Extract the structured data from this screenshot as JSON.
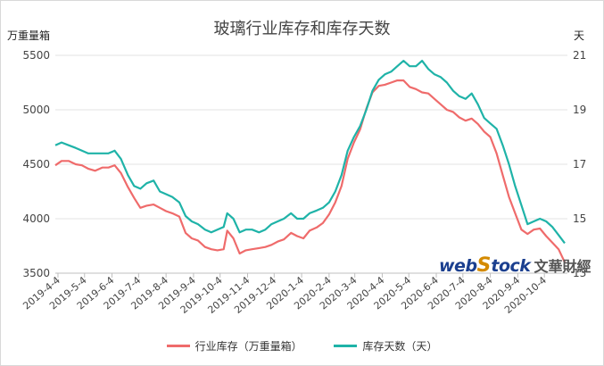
{
  "chart_data": {
    "type": "line",
    "title": "玻璃行业库存和库存天数",
    "ylabel_left": "万重量箱",
    "ylabel_right": "天",
    "y_left_ticks": [
      "3500",
      "4000",
      "4500",
      "5000",
      "5500"
    ],
    "y_right_ticks": [
      "13",
      "15",
      "17",
      "19",
      "21"
    ],
    "y_left_range": [
      3500,
      5500
    ],
    "y_right_range": [
      13,
      21
    ],
    "x_range": [
      "2019-4-1",
      "2020-10-30"
    ],
    "x_ticks": [
      "2019-4-4",
      "2019-5-4",
      "2019-6-4",
      "2019-7-4",
      "2019-8-4",
      "2019-9-4",
      "2019-10-4",
      "2019-11-4",
      "2019-12-4",
      "2020-1-4",
      "2020-2-4",
      "2020-3-4",
      "2020-4-4",
      "2020-5-4",
      "2020-6-4",
      "2020-7-4",
      "2020-8-4",
      "2020-9-4",
      "2020-10-4"
    ],
    "grid": "horizontal",
    "legend_position": "bottom",
    "series": [
      {
        "name": "行业库存（万重量箱）",
        "axis": "left",
        "color": "#ef6b6b",
        "points": [
          [
            "2019-4-1",
            4490
          ],
          [
            "2019-4-8",
            4530
          ],
          [
            "2019-4-16",
            4530
          ],
          [
            "2019-4-24",
            4500
          ],
          [
            "2019-5-1",
            4490
          ],
          [
            "2019-5-8",
            4460
          ],
          [
            "2019-5-16",
            4440
          ],
          [
            "2019-5-24",
            4470
          ],
          [
            "2019-5-31",
            4470
          ],
          [
            "2019-6-7",
            4490
          ],
          [
            "2019-6-14",
            4420
          ],
          [
            "2019-6-22",
            4290
          ],
          [
            "2019-6-29",
            4190
          ],
          [
            "2019-7-6",
            4100
          ],
          [
            "2019-7-13",
            4120
          ],
          [
            "2019-7-21",
            4130
          ],
          [
            "2019-7-28",
            4100
          ],
          [
            "2019-8-4",
            4070
          ],
          [
            "2019-8-11",
            4050
          ],
          [
            "2019-8-19",
            4020
          ],
          [
            "2019-8-26",
            3870
          ],
          [
            "2019-9-2",
            3820
          ],
          [
            "2019-9-9",
            3800
          ],
          [
            "2019-9-17",
            3740
          ],
          [
            "2019-9-24",
            3720
          ],
          [
            "2019-10-1",
            3710
          ],
          [
            "2019-10-8",
            3720
          ],
          [
            "2019-10-12",
            3890
          ],
          [
            "2019-10-19",
            3820
          ],
          [
            "2019-10-26",
            3680
          ],
          [
            "2019-11-2",
            3710
          ],
          [
            "2019-11-9",
            3720
          ],
          [
            "2019-11-17",
            3730
          ],
          [
            "2019-11-24",
            3740
          ],
          [
            "2019-12-1",
            3760
          ],
          [
            "2019-12-8",
            3790
          ],
          [
            "2019-12-15",
            3810
          ],
          [
            "2019-12-23",
            3870
          ],
          [
            "2019-12-30",
            3840
          ],
          [
            "2020-1-6",
            3820
          ],
          [
            "2020-1-13",
            3890
          ],
          [
            "2020-1-21",
            3920
          ],
          [
            "2020-1-28",
            3960
          ],
          [
            "2020-2-4",
            4040
          ],
          [
            "2020-2-11",
            4150
          ],
          [
            "2020-2-18",
            4300
          ],
          [
            "2020-2-25",
            4550
          ],
          [
            "2020-3-3",
            4700
          ],
          [
            "2020-3-10",
            4820
          ],
          [
            "2020-3-17",
            5010
          ],
          [
            "2020-3-24",
            5160
          ],
          [
            "2020-3-31",
            5220
          ],
          [
            "2020-4-7",
            5230
          ],
          [
            "2020-4-14",
            5250
          ],
          [
            "2020-4-21",
            5270
          ],
          [
            "2020-4-28",
            5270
          ],
          [
            "2020-5-5",
            5210
          ],
          [
            "2020-5-12",
            5190
          ],
          [
            "2020-5-19",
            5160
          ],
          [
            "2020-5-26",
            5150
          ],
          [
            "2020-6-2",
            5100
          ],
          [
            "2020-6-9",
            5050
          ],
          [
            "2020-6-16",
            5000
          ],
          [
            "2020-6-23",
            4980
          ],
          [
            "2020-6-30",
            4930
          ],
          [
            "2020-7-7",
            4900
          ],
          [
            "2020-7-14",
            4920
          ],
          [
            "2020-7-21",
            4870
          ],
          [
            "2020-7-28",
            4800
          ],
          [
            "2020-8-4",
            4750
          ],
          [
            "2020-8-11",
            4600
          ],
          [
            "2020-8-18",
            4400
          ],
          [
            "2020-8-25",
            4200
          ],
          [
            "2020-9-1",
            4050
          ],
          [
            "2020-9-8",
            3900
          ],
          [
            "2020-9-15",
            3860
          ],
          [
            "2020-9-22",
            3900
          ],
          [
            "2020-9-29",
            3910
          ],
          [
            "2020-10-6",
            3840
          ],
          [
            "2020-10-13",
            3780
          ],
          [
            "2020-10-20",
            3720
          ],
          [
            "2020-10-27",
            3600
          ]
        ]
      },
      {
        "name": "库存天数（天）",
        "axis": "right",
        "color": "#1fb3a8",
        "points": [
          [
            "2019-4-1",
            17.7
          ],
          [
            "2019-4-8",
            17.8
          ],
          [
            "2019-4-16",
            17.7
          ],
          [
            "2019-4-24",
            17.6
          ],
          [
            "2019-5-1",
            17.5
          ],
          [
            "2019-5-8",
            17.4
          ],
          [
            "2019-5-16",
            17.4
          ],
          [
            "2019-5-24",
            17.4
          ],
          [
            "2019-5-31",
            17.4
          ],
          [
            "2019-6-7",
            17.5
          ],
          [
            "2019-6-14",
            17.2
          ],
          [
            "2019-6-22",
            16.6
          ],
          [
            "2019-6-29",
            16.2
          ],
          [
            "2019-7-6",
            16.1
          ],
          [
            "2019-7-13",
            16.3
          ],
          [
            "2019-7-21",
            16.4
          ],
          [
            "2019-7-28",
            16.0
          ],
          [
            "2019-8-4",
            15.9
          ],
          [
            "2019-8-11",
            15.8
          ],
          [
            "2019-8-19",
            15.6
          ],
          [
            "2019-8-26",
            15.1
          ],
          [
            "2019-9-2",
            14.9
          ],
          [
            "2019-9-9",
            14.8
          ],
          [
            "2019-9-17",
            14.6
          ],
          [
            "2019-9-24",
            14.5
          ],
          [
            "2019-10-1",
            14.6
          ],
          [
            "2019-10-8",
            14.7
          ],
          [
            "2019-10-12",
            15.2
          ],
          [
            "2019-10-19",
            15.0
          ],
          [
            "2019-10-26",
            14.5
          ],
          [
            "2019-11-2",
            14.6
          ],
          [
            "2019-11-9",
            14.6
          ],
          [
            "2019-11-17",
            14.5
          ],
          [
            "2019-11-24",
            14.6
          ],
          [
            "2019-12-1",
            14.8
          ],
          [
            "2019-12-8",
            14.9
          ],
          [
            "2019-12-15",
            15.0
          ],
          [
            "2019-12-23",
            15.2
          ],
          [
            "2019-12-30",
            15.0
          ],
          [
            "2020-1-6",
            15.0
          ],
          [
            "2020-1-13",
            15.2
          ],
          [
            "2020-1-21",
            15.3
          ],
          [
            "2020-1-28",
            15.4
          ],
          [
            "2020-2-4",
            15.6
          ],
          [
            "2020-2-11",
            16.0
          ],
          [
            "2020-2-18",
            16.6
          ],
          [
            "2020-2-25",
            17.5
          ],
          [
            "2020-3-3",
            18.0
          ],
          [
            "2020-3-10",
            18.4
          ],
          [
            "2020-3-17",
            19.0
          ],
          [
            "2020-3-24",
            19.7
          ],
          [
            "2020-3-31",
            20.1
          ],
          [
            "2020-4-7",
            20.3
          ],
          [
            "2020-4-14",
            20.4
          ],
          [
            "2020-4-21",
            20.6
          ],
          [
            "2020-4-28",
            20.8
          ],
          [
            "2020-5-5",
            20.6
          ],
          [
            "2020-5-12",
            20.6
          ],
          [
            "2020-5-19",
            20.8
          ],
          [
            "2020-5-26",
            20.5
          ],
          [
            "2020-6-2",
            20.3
          ],
          [
            "2020-6-9",
            20.2
          ],
          [
            "2020-6-16",
            20.0
          ],
          [
            "2020-6-23",
            19.7
          ],
          [
            "2020-6-30",
            19.5
          ],
          [
            "2020-7-7",
            19.4
          ],
          [
            "2020-7-14",
            19.6
          ],
          [
            "2020-7-21",
            19.2
          ],
          [
            "2020-7-28",
            18.7
          ],
          [
            "2020-8-4",
            18.5
          ],
          [
            "2020-8-11",
            18.3
          ],
          [
            "2020-8-18",
            17.7
          ],
          [
            "2020-8-25",
            17.0
          ],
          [
            "2020-9-1",
            16.2
          ],
          [
            "2020-9-8",
            15.5
          ],
          [
            "2020-9-15",
            14.8
          ],
          [
            "2020-9-22",
            14.9
          ],
          [
            "2020-9-29",
            15.0
          ],
          [
            "2020-10-6",
            14.9
          ],
          [
            "2020-10-13",
            14.7
          ],
          [
            "2020-10-20",
            14.4
          ],
          [
            "2020-10-27",
            14.1
          ]
        ]
      }
    ]
  },
  "watermark": {
    "logo_web": "web",
    "logo_s": "S",
    "logo_stock": "tock",
    "logo_cn": "文華財經"
  }
}
